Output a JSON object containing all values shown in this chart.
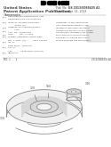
{
  "background_color": "#ffffff",
  "header_barcode_color": "#000000",
  "text_color": "#444444",
  "title_line1": "United States",
  "title_line2": "Patent Application Publication",
  "title_line3": "Yamamoto",
  "pub_no": "US 2013/0089435 A1",
  "pub_date": "Apr. 11, 2013",
  "heading": "REFRIGERANT COMPRESSOR AND\nREFRIGERATING CYCLE DEVICE",
  "diagram_labels": [
    "120",
    "150",
    "140",
    "110"
  ],
  "fig_label": "FIG. 1",
  "diagram_color": "#aaaaaa",
  "diagram_edge_color": "#888888"
}
